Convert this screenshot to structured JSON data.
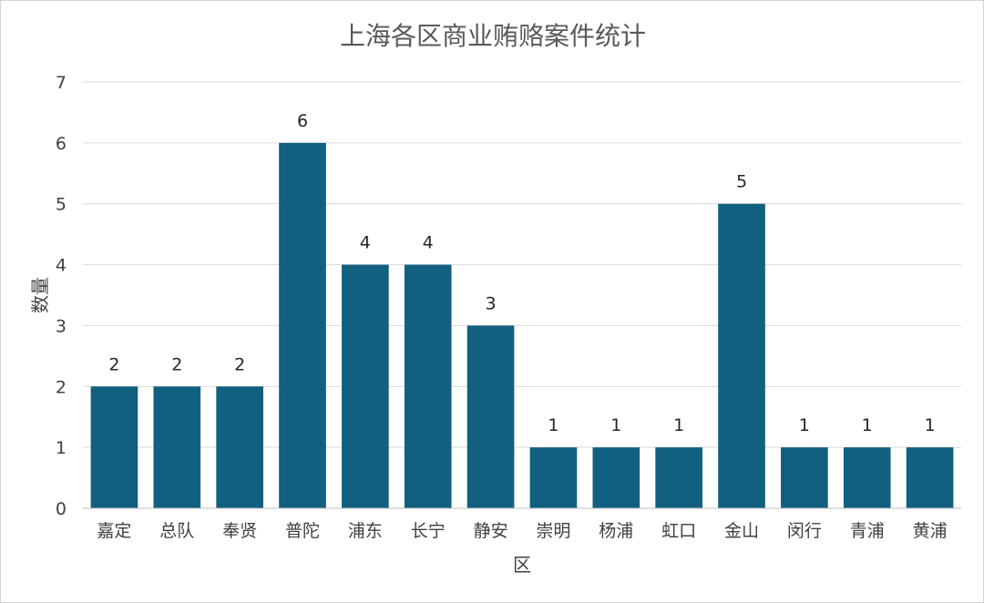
{
  "chart_data": {
    "type": "bar",
    "title": "上海各区商业贿赂案件统计",
    "xlabel": "区",
    "ylabel": "数量",
    "categories": [
      "嘉定",
      "总队",
      "奉贤",
      "普陀",
      "浦东",
      "长宁",
      "静安",
      "崇明",
      "杨浦",
      "虹口",
      "金山",
      "闵行",
      "青浦",
      "黄浦"
    ],
    "series": [
      {
        "values": [
          2,
          2,
          2,
          6,
          4,
          4,
          3,
          1,
          1,
          1,
          5,
          1,
          1,
          1
        ],
        "color": "#12607f"
      }
    ],
    "ylim": [
      0,
      7
    ],
    "yticks": [
      0,
      1,
      2,
      3,
      4,
      5,
      6,
      7
    ],
    "grid": true,
    "data_labels": true,
    "legend": "none"
  }
}
